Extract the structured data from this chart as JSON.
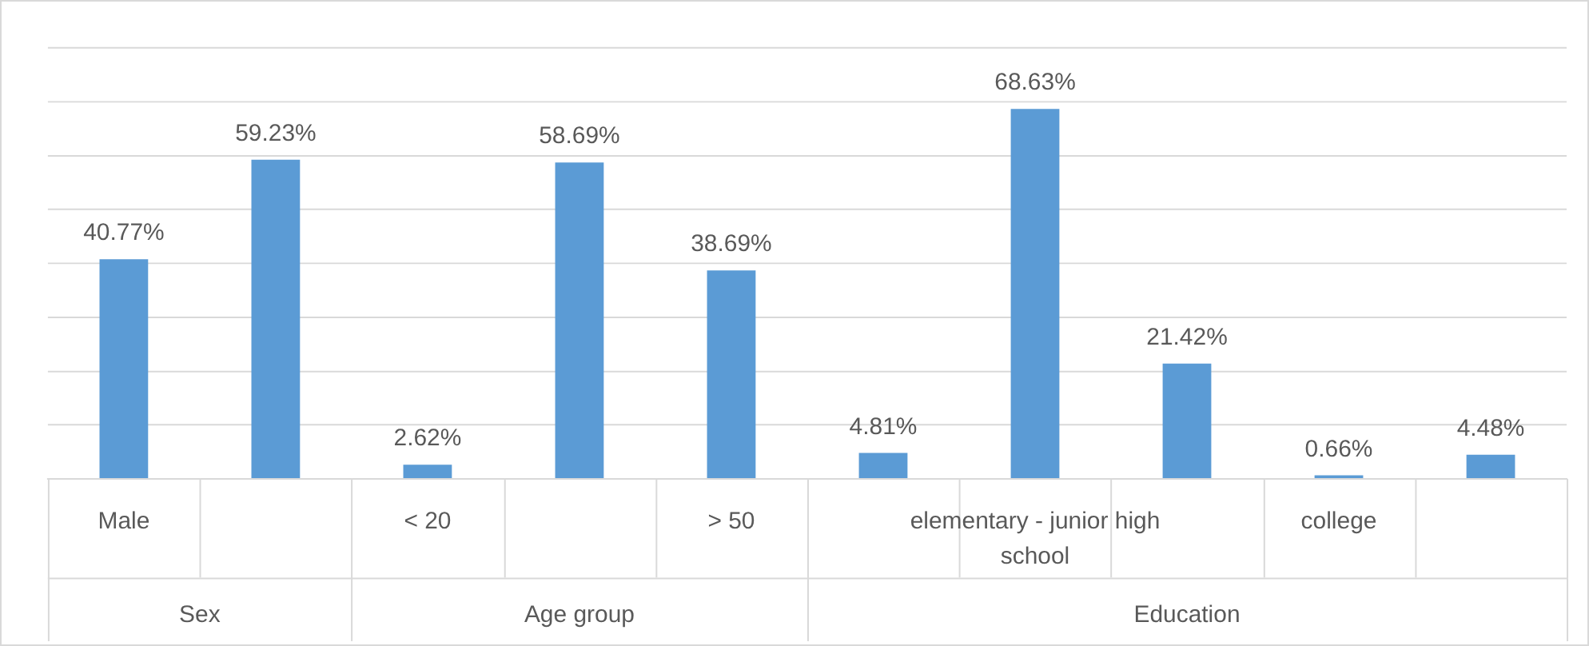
{
  "chart_data": {
    "type": "bar",
    "categories": [
      "Male",
      null,
      "< 20",
      null,
      "> 50",
      null,
      "elementary - junior high school",
      null,
      "college",
      null
    ],
    "values": [
      40.77,
      59.23,
      2.62,
      58.69,
      38.69,
      4.81,
      68.63,
      21.42,
      0.66,
      4.48
    ],
    "value_labels": [
      "40.77%",
      "59.23%",
      "2.62%",
      "58.69%",
      "38.69%",
      "4.81%",
      "68.63%",
      "21.42%",
      "0.66%",
      "4.48%"
    ],
    "color": "#5b9bd5",
    "ylim": [
      0,
      80
    ],
    "yticks": [
      {
        "value": 0,
        "label": null
      },
      {
        "value": 10,
        "label": null
      },
      {
        "value": 20,
        "label": null
      },
      {
        "value": 30,
        "label": null
      },
      {
        "value": 40,
        "label": null
      },
      {
        "value": 50,
        "label": null
      },
      {
        "value": 60,
        "label": null
      },
      {
        "value": 70,
        "label": null
      },
      {
        "value": 80,
        "label": null
      }
    ],
    "grid": "y",
    "legend": false,
    "annotations": [
      "Sex",
      "Age group",
      "Education"
    ]
  }
}
